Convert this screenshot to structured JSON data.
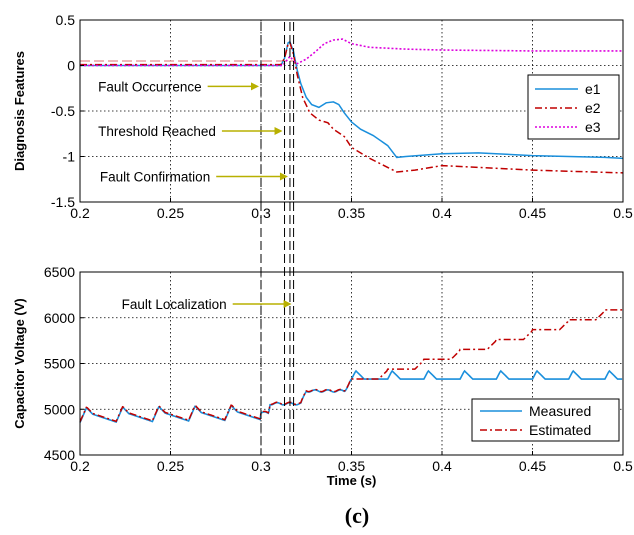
{
  "panel_label": "(c)",
  "chart_data": [
    {
      "type": "line",
      "ylabel": "Diagnosis Features",
      "xlim": [
        0.2,
        0.5
      ],
      "ylim": [
        -1.5,
        0.5
      ],
      "xticks": [
        "0.2",
        "0.25",
        "0.3",
        "0.35",
        "0.4",
        "0.45",
        "0.5"
      ],
      "yticks": [
        "-1.5",
        "-1",
        "-0.5",
        "0",
        "0.5"
      ],
      "grid": true,
      "legend_position": "right",
      "series": [
        {
          "name": "e1",
          "color": "#1a8fdc",
          "style": "solid",
          "points": [
            [
              0.2,
              0.0
            ],
            [
              0.3,
              0.0
            ],
            [
              0.311,
              0.0
            ],
            [
              0.313,
              0.08
            ],
            [
              0.315,
              0.25
            ],
            [
              0.316,
              0.26
            ],
            [
              0.318,
              0.15
            ],
            [
              0.32,
              -0.05
            ],
            [
              0.322,
              -0.2
            ],
            [
              0.325,
              -0.35
            ],
            [
              0.328,
              -0.43
            ],
            [
              0.332,
              -0.46
            ],
            [
              0.336,
              -0.41
            ],
            [
              0.34,
              -0.4
            ],
            [
              0.343,
              -0.43
            ],
            [
              0.346,
              -0.52
            ],
            [
              0.35,
              -0.62
            ],
            [
              0.355,
              -0.7
            ],
            [
              0.362,
              -0.77
            ],
            [
              0.37,
              -0.88
            ],
            [
              0.375,
              -1.01
            ],
            [
              0.38,
              -1.0
            ],
            [
              0.4,
              -0.97
            ],
            [
              0.42,
              -0.96
            ],
            [
              0.45,
              -0.99
            ],
            [
              0.49,
              -1.01
            ],
            [
              0.5,
              -1.02
            ]
          ]
        },
        {
          "name": "e2",
          "color": "#c00000",
          "style": "dashdot",
          "points": [
            [
              0.2,
              0.01
            ],
            [
              0.3,
              0.01
            ],
            [
              0.311,
              0.01
            ],
            [
              0.313,
              0.08
            ],
            [
              0.315,
              0.24
            ],
            [
              0.316,
              0.25
            ],
            [
              0.318,
              0.12
            ],
            [
              0.32,
              -0.1
            ],
            [
              0.323,
              -0.35
            ],
            [
              0.327,
              -0.52
            ],
            [
              0.332,
              -0.6
            ],
            [
              0.337,
              -0.63
            ],
            [
              0.34,
              -0.7
            ],
            [
              0.346,
              -0.78
            ],
            [
              0.35,
              -0.9
            ],
            [
              0.355,
              -0.96
            ],
            [
              0.36,
              -1.02
            ],
            [
              0.365,
              -1.07
            ],
            [
              0.37,
              -1.12
            ],
            [
              0.375,
              -1.17
            ],
            [
              0.385,
              -1.15
            ],
            [
              0.4,
              -1.1
            ],
            [
              0.42,
              -1.12
            ],
            [
              0.45,
              -1.15
            ],
            [
              0.5,
              -1.18
            ]
          ]
        },
        {
          "name": "e3",
          "color": "#dd00dd",
          "style": "dotted",
          "points": [
            [
              0.2,
              0.0
            ],
            [
              0.3,
              0.0
            ],
            [
              0.312,
              0.0
            ],
            [
              0.314,
              0.05
            ],
            [
              0.316,
              0.1
            ],
            [
              0.318,
              0.05
            ],
            [
              0.32,
              0.02
            ],
            [
              0.325,
              0.07
            ],
            [
              0.33,
              0.15
            ],
            [
              0.335,
              0.24
            ],
            [
              0.34,
              0.28
            ],
            [
              0.345,
              0.29
            ],
            [
              0.35,
              0.24
            ],
            [
              0.36,
              0.2
            ],
            [
              0.38,
              0.18
            ],
            [
              0.4,
              0.17
            ],
            [
              0.45,
              0.16
            ],
            [
              0.5,
              0.16
            ]
          ]
        }
      ],
      "threshold": {
        "y": 0.05,
        "color": "#e8a0a0"
      },
      "vlines": [
        0.3,
        0.313,
        0.316,
        0.318
      ],
      "annotations": [
        {
          "text": "Fault Occurrence",
          "x_end": 0.3,
          "y": -0.23,
          "x_text": 0.21
        },
        {
          "text": "Threshold Reached",
          "x_end": 0.313,
          "y": -0.72,
          "x_text": 0.21
        },
        {
          "text": "Fault Confirmation",
          "x_end": 0.316,
          "y": -1.22,
          "x_text": 0.211
        }
      ]
    },
    {
      "type": "line",
      "xlabel": "Time (s)",
      "ylabel": "Capacitor Voltage (V)",
      "xlim": [
        0.2,
        0.5
      ],
      "ylim": [
        4500,
        6500
      ],
      "xticks": [
        "0.2",
        "0.25",
        "0.3",
        "0.35",
        "0.4",
        "0.45",
        "0.5"
      ],
      "yticks": [
        "4500",
        "5000",
        "5500",
        "6000",
        "6500"
      ],
      "grid": true,
      "legend_position": "bottom-right",
      "series": [
        {
          "name": "Measured",
          "color": "#1a8fdc",
          "style": "solid"
        },
        {
          "name": "Estimated",
          "color": "#c00000",
          "style": "dashdot"
        }
      ],
      "segments": [
        {
          "from": 0.2,
          "to": 0.3,
          "oscillation": {
            "start": 4920,
            "end": 4950,
            "amplitude": 120,
            "period": 0.02
          }
        },
        {
          "from": 0.3,
          "to": 0.35,
          "steps": [
            [
              0.3,
              4960
            ],
            [
              0.305,
              5060
            ],
            [
              0.325,
              5200
            ],
            [
              0.35,
              5330
            ]
          ]
        },
        {
          "from": 0.35,
          "to": 0.5,
          "measured": {
            "base": 5330,
            "bump": 90,
            "period": 0.02,
            "phase": 0.37
          },
          "estimated": {
            "start": 5330,
            "end": 6140,
            "step_period": 0.02
          }
        }
      ],
      "vlines": [
        0.3,
        0.313,
        0.316,
        0.318
      ],
      "annotations": [
        {
          "text": "Fault Localization",
          "x_end": 0.318,
          "y": 6150,
          "x_text": 0.223
        }
      ]
    }
  ]
}
